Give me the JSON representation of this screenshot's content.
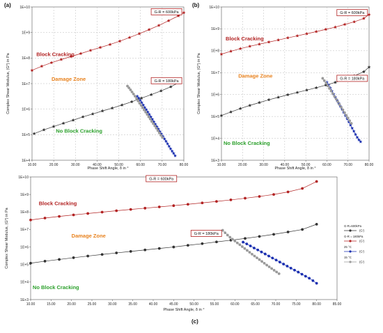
{
  "chart_data": [
    {
      "type": "scatter",
      "panel_label": "(a)",
      "xlabel": "Phase Shift Angle, δ in °",
      "ylabel": "Complex Shear Modulus, (G*) in Pa",
      "xlim": [
        10,
        80
      ],
      "ylim": [
        10000,
        10000000000
      ],
      "yscale": "log",
      "x_ticks": [
        "10.00",
        "20.00",
        "30.00",
        "40.00",
        "50.00",
        "60.00",
        "70.00",
        "80.00"
      ],
      "y_ticks": [
        "1E+4",
        "1E+5",
        "1E+6",
        "1E+7",
        "1E+8",
        "1E+9",
        "1E+10"
      ],
      "grid": true,
      "annotations": [
        {
          "text": "Block Cracking",
          "x": 12,
          "y": 120000000,
          "color": "#b22222"
        },
        {
          "text": "Damage Zone",
          "x": 19,
          "y": 13000000,
          "color": "#e8821e"
        },
        {
          "text": "No Block Cracking",
          "x": 21,
          "y": 120000,
          "color": "#2ca02c"
        }
      ],
      "boxes": [
        {
          "text": "G-R = 600kPa",
          "x": 72,
          "y": 6500000000
        },
        {
          "text": "G-R = 180kPa",
          "x": 72,
          "y": 13000000
        }
      ],
      "series": [
        {
          "color": "#b22222",
          "marker": "star",
          "x": [
            10,
            14.5,
            19,
            23.5,
            28,
            32.5,
            37,
            41.5,
            46,
            50.5,
            55,
            59.5,
            64,
            68.5,
            73,
            77.5,
            80
          ],
          "y": [
            33000000,
            48000000,
            66000000,
            88000000,
            115000000,
            150000000,
            200000000,
            260000000,
            340000000,
            460000000,
            640000000,
            900000000,
            1300000000,
            1900000000,
            2900000000,
            4500000000,
            6000000000
          ]
        },
        {
          "color": "#333333",
          "marker": "star",
          "x": [
            11,
            15.5,
            20,
            24.5,
            29,
            33.5,
            38,
            42.5,
            47,
            51.5,
            56,
            60.5,
            65,
            69.5,
            74,
            78.5
          ],
          "y": [
            110000,
            155000,
            210000,
            280000,
            370000,
            500000,
            650000,
            850000,
            1100000,
            1450000,
            1950000,
            2700000,
            3700000,
            5200000,
            7500000,
            12000000
          ]
        },
        {
          "color": "#1a2fb0",
          "marker": "star",
          "x": [
            58.5,
            59.2,
            59.9,
            60.6,
            61.3,
            62.0,
            62.7,
            63.4,
            64.1,
            64.8,
            65.5,
            66.2,
            66.9,
            67.6,
            68.3,
            69.0,
            69.7,
            70.4,
            71.1,
            71.8,
            72.5,
            73.2,
            73.9,
            74.6,
            75.3,
            76.0
          ],
          "y": [
            3200000,
            2700000,
            2200000,
            1800000,
            1450000,
            1150000,
            950000,
            770000,
            620000,
            500000,
            400000,
            320000,
            255000,
            205000,
            165000,
            132000,
            106000,
            85000,
            68000,
            55000,
            44000,
            35000,
            28000,
            22500,
            18500,
            15000
          ]
        },
        {
          "color": "#9a9a9a",
          "marker": "circle",
          "x": [
            54,
            54.7,
            55.4,
            56.1,
            56.8,
            57.5,
            58.2,
            58.9,
            59.6,
            60.3,
            61.0,
            61.7,
            62.4,
            63.1,
            63.8,
            64.5,
            65.2,
            65.9,
            66.6,
            67.3,
            68.0,
            68.7,
            69.4,
            70.1
          ],
          "y": [
            8000000,
            6800000,
            5700000,
            4700000,
            3900000,
            3200000,
            2600000,
            2100000,
            1700000,
            1400000,
            1150000,
            930000,
            760000,
            620000,
            500000,
            410000,
            330000,
            270000,
            220000,
            180000,
            145000,
            118000,
            95000,
            78000
          ]
        }
      ]
    },
    {
      "type": "scatter",
      "panel_label": "(b)",
      "xlabel": "Phase Shift Angle, δ in °",
      "ylabel": "Complex Shear Modulus, (G*) in Pa",
      "xlim": [
        10,
        80
      ],
      "ylim": [
        1000,
        10000000000
      ],
      "yscale": "log",
      "x_ticks": [
        "10.00",
        "20.00",
        "30.00",
        "40.00",
        "50.00",
        "60.00",
        "70.00",
        "80.00"
      ],
      "y_ticks": [
        "1E+3",
        "1E+4",
        "1E+5",
        "1E+6",
        "1E+7",
        "1E+8",
        "1E+9",
        "1E+10"
      ],
      "grid": true,
      "annotations": [
        {
          "text": "Block Cracking",
          "x": 12,
          "y": 300000000,
          "color": "#b22222"
        },
        {
          "text": "Damage Zone",
          "x": 18,
          "y": 6000000,
          "color": "#e8821e"
        },
        {
          "text": "No Block Cracking",
          "x": 11,
          "y": 5000,
          "color": "#2ca02c"
        }
      ],
      "boxes": [
        {
          "text": "G-R = 600kPa",
          "x": 72,
          "y": 5500000000
        },
        {
          "text": "G-R = 180kPa",
          "x": 72,
          "y": 5500000
        }
      ],
      "series": [
        {
          "color": "#b22222",
          "marker": "star",
          "x": [
            10,
            14.5,
            19,
            23.5,
            28,
            32.5,
            37,
            41.5,
            46,
            50.5,
            55,
            59.5,
            64,
            68.5,
            73,
            77.5,
            80
          ],
          "y": [
            70000000,
            95000000,
            125000000,
            160000000,
            200000000,
            250000000,
            310000000,
            390000000,
            480000000,
            600000000,
            750000000,
            950000000,
            1200000000,
            1600000000,
            2100000000,
            3000000000,
            4500000000
          ]
        },
        {
          "color": "#333333",
          "marker": "star",
          "x": [
            10,
            14.5,
            19,
            23.5,
            28,
            32.5,
            37,
            41.5,
            46,
            50.5,
            55,
            59.5,
            64,
            68.5,
            73,
            77.5,
            80
          ],
          "y": [
            110000,
            160000,
            230000,
            320000,
            430000,
            580000,
            750000,
            980000,
            1250000,
            1600000,
            2050000,
            2700000,
            3600000,
            5000000,
            7200000,
            11000000,
            18000000
          ]
        },
        {
          "color": "#1a2fb0",
          "marker": "star",
          "x": [
            60,
            60.8,
            61.6,
            62.4,
            63.2,
            64,
            64.8,
            65.6,
            66.4,
            67.2,
            68,
            68.8,
            69.6,
            70.4,
            71.2,
            72,
            72.8,
            73.6,
            74.4,
            75.2,
            76
          ],
          "y": [
            3600000,
            2700000,
            2000000,
            1450000,
            1050000,
            760000,
            550000,
            400000,
            290000,
            210000,
            150000,
            108000,
            78000,
            56000,
            40000,
            29000,
            21000,
            15000,
            11000,
            8500,
            7000
          ]
        },
        {
          "color": "#9a9a9a",
          "marker": "circle",
          "x": [
            58,
            58.8,
            59.6,
            60.4,
            61.2,
            62,
            62.8,
            63.6,
            64.4,
            65.2,
            66,
            66.8,
            67.6,
            68.4,
            69.2,
            70,
            70.8,
            71.6
          ],
          "y": [
            5500000,
            4300000,
            3300000,
            2500000,
            1900000,
            1450000,
            1100000,
            820000,
            620000,
            470000,
            350000,
            265000,
            200000,
            150000,
            113000,
            85000,
            64000,
            48000
          ]
        }
      ]
    },
    {
      "type": "scatter",
      "panel_label": "(c)",
      "xlabel": "Phase Shift Angle, δ in °",
      "ylabel": "Complex Shear Modulus, (G*) in Pa",
      "xlim": [
        10,
        85
      ],
      "ylim": [
        1000,
        10000000000
      ],
      "yscale": "log",
      "x_ticks": [
        "10.00",
        "15.00",
        "20.00",
        "25.00",
        "30.00",
        "35.00",
        "40.00",
        "45.00",
        "50.00",
        "55.00",
        "60.00",
        "65.00",
        "70.00",
        "75.00",
        "80.00",
        "85.00"
      ],
      "y_ticks": [
        "1E+3",
        "1E+4",
        "1E+5",
        "1E+6",
        "1E+7",
        "1E+8",
        "1E+9",
        "1E+10"
      ],
      "grid": false,
      "annotations": [
        {
          "text": "Block Cracking",
          "x": 12,
          "y": 250000000,
          "color": "#b22222"
        },
        {
          "text": "Damage Zone",
          "x": 20,
          "y": 3500000,
          "color": "#e8821e"
        },
        {
          "text": "No Block Cracking",
          "x": 10.5,
          "y": 4000,
          "color": "#2ca02c"
        }
      ],
      "boxes": [
        {
          "text": "G-R = 600kPa",
          "x": 42,
          "y": 8000000000
        },
        {
          "text": "G-R = 180kPa",
          "x": 53,
          "y": 6000000
        }
      ],
      "legend": {
        "placement": "right",
        "entries": [
          {
            "label": "G-R=600kPa",
            "sub": "(G')",
            "color": "#333333",
            "marker": "circle"
          },
          {
            "label": "G-R = 180kPa",
            "sub": "(G')",
            "color": "#b22222",
            "marker": "circle"
          },
          {
            "label": "25 °C",
            "sub": "(G')",
            "color": "#1a2fb0",
            "marker": "circle"
          },
          {
            "label": "15 °C",
            "sub": "(G')",
            "color": "#9a9a9a",
            "marker": "circle"
          }
        ]
      },
      "series": [
        {
          "color": "#b22222",
          "marker": "circle",
          "x": [
            10,
            13.5,
            17,
            20.5,
            24,
            27.5,
            31,
            34.5,
            38,
            41.5,
            45,
            48.5,
            52,
            55.5,
            59,
            62.5,
            66,
            69.5,
            73,
            76.5,
            80
          ],
          "y": [
            35000000,
            45000000,
            56000000,
            68000000,
            82000000,
            98000000,
            118000000,
            140000000,
            165000000,
            195000000,
            230000000,
            275000000,
            330000000,
            400000000,
            490000000,
            610000000,
            770000000,
            1000000000,
            1400000000,
            2200000000,
            5500000000
          ]
        },
        {
          "color": "#333333",
          "marker": "circle",
          "x": [
            10,
            13.5,
            17,
            20.5,
            24,
            27.5,
            31,
            34.5,
            38,
            41.5,
            45,
            48.5,
            52,
            55.5,
            59,
            62.5,
            66,
            69.5,
            73,
            76.5,
            80
          ],
          "y": [
            120000,
            155000,
            195000,
            245000,
            305000,
            375000,
            460000,
            560000,
            680000,
            830000,
            1000000,
            1250000,
            1550000,
            1950000,
            2450000,
            3100000,
            4000000,
            5300000,
            7200000,
            10000000,
            20000000
          ]
        },
        {
          "color": "#1a2fb0",
          "marker": "circle",
          "x": [
            62,
            62.9,
            63.8,
            64.7,
            65.6,
            66.5,
            67.4,
            68.3,
            69.2,
            70.1,
            71,
            71.9,
            72.8,
            73.7,
            74.6,
            75.5,
            76.4,
            77.3,
            78.2,
            79.1,
            80
          ],
          "y": [
            1900000,
            1500000,
            1150000,
            880000,
            680000,
            520000,
            400000,
            305000,
            235000,
            180000,
            138000,
            106000,
            81000,
            62000,
            48000,
            37000,
            28000,
            21500,
            16500,
            12000,
            8500
          ]
        },
        {
          "color": "#9a9a9a",
          "marker": "circle",
          "x": [
            57,
            57.6,
            58.2,
            58.8,
            59.4,
            60,
            60.6,
            61.2,
            61.8,
            62.4,
            63,
            63.6,
            64.2,
            64.8,
            65.4,
            66,
            66.6,
            67.2,
            67.8,
            68.4,
            69,
            69.6,
            70.2,
            70.8
          ],
          "y": [
            9000000,
            6500000,
            4800000,
            3600000,
            2800000,
            2200000,
            1700000,
            1350000,
            1050000,
            820000,
            640000,
            500000,
            390000,
            305000,
            240000,
            190000,
            150000,
            118000,
            93000,
            74000,
            59000,
            47000,
            37500,
            30000
          ]
        }
      ]
    }
  ]
}
